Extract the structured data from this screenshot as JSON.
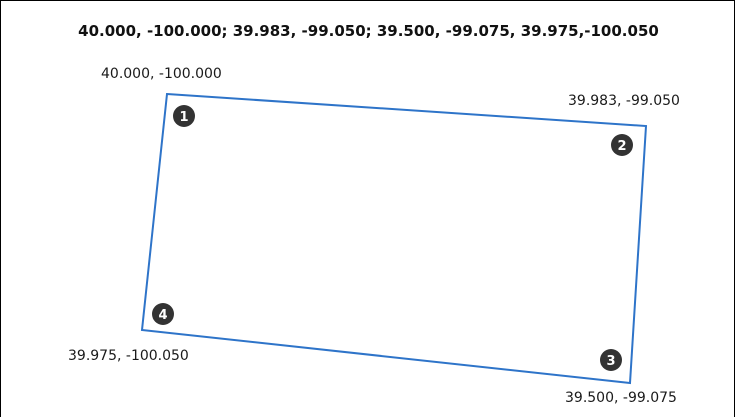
{
  "title": "40.000, -100.000; 39.983, -99.050; 39.500, -99.075, 39.975,-100.050",
  "polygon": {
    "stroke_color": "#2e74c9",
    "marker_color": "#333333"
  },
  "vertices": [
    {
      "number": "1",
      "label": "40.000, -100.000"
    },
    {
      "number": "2",
      "label": "39.983, -99.050"
    },
    {
      "number": "3",
      "label": "39.500, -99.075"
    },
    {
      "number": "4",
      "label": "39.975, -100.050"
    }
  ]
}
